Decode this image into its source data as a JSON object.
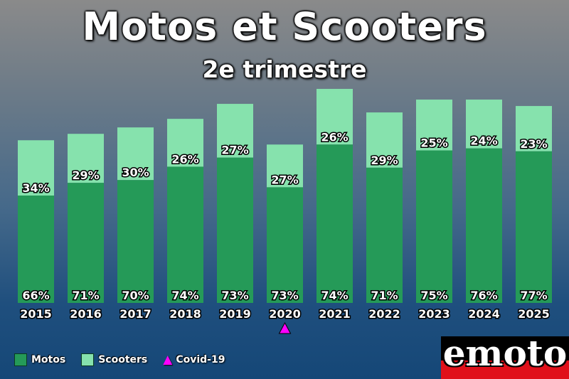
{
  "header": {
    "title": "Motos et Scooters",
    "subtitle": "2e trimestre"
  },
  "colors": {
    "motos": "#259a58",
    "scooters": "#86e2ad",
    "covid": "#ff00ff",
    "logo_red": "#e0101a"
  },
  "legend": {
    "motos": "Motos",
    "scooters": "Scooters",
    "covid": "Covid-19"
  },
  "logo": {
    "text": "emoto"
  },
  "chart_data": {
    "type": "bar",
    "stacked": true,
    "categories": [
      "2015",
      "2016",
      "2017",
      "2018",
      "2019",
      "2020",
      "2021",
      "2022",
      "2023",
      "2024",
      "2025"
    ],
    "totals_relative": [
      0.76,
      0.79,
      0.82,
      0.86,
      0.93,
      0.74,
      1.0,
      0.89,
      0.95,
      0.95,
      0.92
    ],
    "series": [
      {
        "name": "Motos",
        "percent_labels": [
          "66%",
          "71%",
          "70%",
          "74%",
          "73%",
          "73%",
          "74%",
          "71%",
          "75%",
          "76%",
          "77%"
        ],
        "values": [
          66,
          71,
          70,
          74,
          73,
          73,
          74,
          71,
          75,
          76,
          77
        ]
      },
      {
        "name": "Scooters",
        "percent_labels": [
          "34%",
          "29%",
          "30%",
          "26%",
          "27%",
          "27%",
          "26%",
          "29%",
          "25%",
          "24%",
          "23%"
        ],
        "values": [
          34,
          29,
          30,
          26,
          27,
          27,
          26,
          29,
          25,
          24,
          23
        ]
      }
    ],
    "annotations": [
      {
        "category": "2020",
        "marker": "triangle",
        "label": "Covid-19"
      }
    ],
    "grid": false,
    "legend_position": "bottom-left"
  }
}
